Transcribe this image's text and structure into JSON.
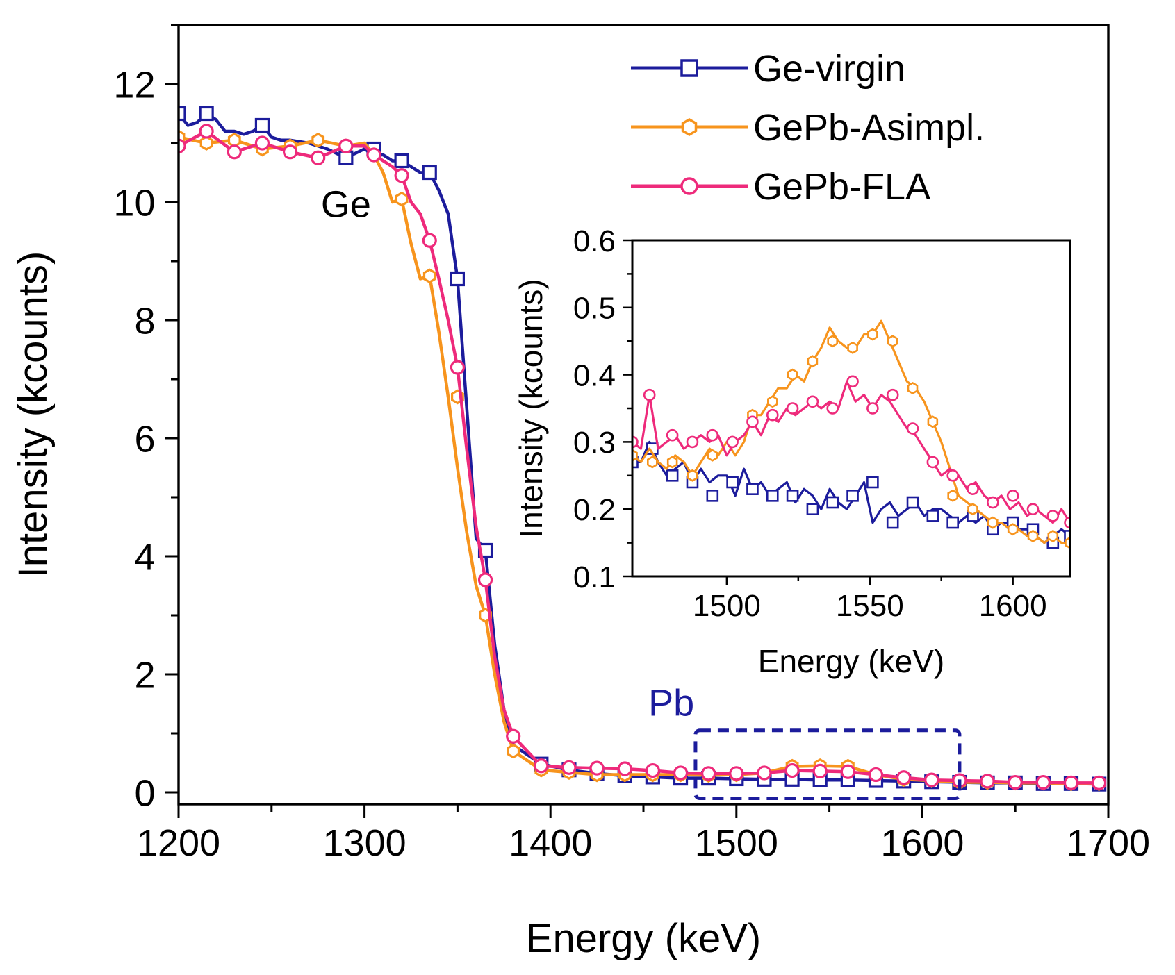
{
  "chart_data": [
    {
      "id": "main",
      "type": "line",
      "title": "",
      "xlabel": "Energy (keV)",
      "ylabel": "Intensity (kcounts)",
      "xlim": [
        1200,
        1700
      ],
      "ylim": [
        -0.2,
        13.0
      ],
      "xticks": [
        1200,
        1300,
        1400,
        1500,
        1600,
        1700
      ],
      "yticks": [
        0,
        2,
        4,
        6,
        8,
        10,
        12
      ],
      "legend_position": "top-right",
      "annotations": [
        {
          "text": "Ge",
          "x": 1290,
          "y": 9.75,
          "color": "#000000"
        },
        {
          "text": "Pb",
          "x": 1465,
          "y": 1.3,
          "color": "#1c1c9c"
        }
      ],
      "highlight_box": {
        "x": [
          1478,
          1620
        ],
        "y": [
          -0.1,
          1.05
        ],
        "color": "#1c1c9c"
      },
      "series": [
        {
          "name": "Ge-virgin",
          "color": "#1c1c9c",
          "marker": "square",
          "x": [
            1200,
            1205,
            1210,
            1215,
            1220,
            1225,
            1230,
            1235,
            1240,
            1245,
            1250,
            1255,
            1260,
            1270,
            1280,
            1290,
            1300,
            1305,
            1310,
            1315,
            1320,
            1325,
            1330,
            1335,
            1340,
            1345,
            1350,
            1355,
            1360,
            1365,
            1370,
            1375,
            1380,
            1395,
            1410,
            1425,
            1440,
            1455,
            1470,
            1485,
            1500,
            1515,
            1530,
            1545,
            1560,
            1575,
            1590,
            1605,
            1620,
            1635,
            1650,
            1665,
            1680,
            1695
          ],
          "y": [
            11.5,
            11.3,
            11.35,
            11.5,
            11.4,
            11.2,
            11.2,
            11.15,
            11.2,
            11.3,
            11.1,
            11.05,
            11.05,
            11.0,
            10.9,
            10.75,
            10.9,
            10.8,
            10.8,
            10.7,
            10.7,
            10.6,
            10.5,
            10.5,
            10.2,
            9.8,
            8.7,
            6.5,
            4.3,
            4.1,
            2.5,
            1.4,
            0.8,
            0.48,
            0.38,
            0.32,
            0.28,
            0.26,
            0.24,
            0.24,
            0.23,
            0.22,
            0.22,
            0.21,
            0.21,
            0.2,
            0.19,
            0.18,
            0.17,
            0.16,
            0.16,
            0.15,
            0.15,
            0.14
          ],
          "marker_x": [
            1200,
            1215,
            1245,
            1290,
            1305,
            1320,
            1335,
            1350,
            1365,
            1395,
            1410,
            1425,
            1440,
            1455,
            1470,
            1485,
            1500,
            1515,
            1530,
            1545,
            1560,
            1575,
            1590,
            1605,
            1620,
            1635,
            1650,
            1665,
            1680,
            1695
          ],
          "marker_y": [
            11.5,
            11.5,
            11.3,
            10.75,
            10.9,
            10.7,
            10.5,
            8.7,
            4.1,
            0.48,
            0.38,
            0.32,
            0.28,
            0.26,
            0.24,
            0.24,
            0.23,
            0.22,
            0.22,
            0.21,
            0.21,
            0.2,
            0.19,
            0.18,
            0.17,
            0.16,
            0.16,
            0.15,
            0.15,
            0.14
          ]
        },
        {
          "name": "GePb-Asimpl.",
          "color": "#f7941d",
          "marker": "hexagon",
          "x": [
            1200,
            1215,
            1230,
            1245,
            1260,
            1275,
            1290,
            1300,
            1305,
            1310,
            1315,
            1320,
            1325,
            1330,
            1335,
            1340,
            1345,
            1350,
            1355,
            1360,
            1365,
            1370,
            1375,
            1380,
            1395,
            1410,
            1425,
            1440,
            1455,
            1470,
            1485,
            1500,
            1515,
            1530,
            1545,
            1560,
            1575,
            1590,
            1605,
            1620,
            1635,
            1650,
            1665,
            1680,
            1695
          ],
          "y": [
            11.1,
            11.0,
            11.05,
            10.9,
            10.95,
            11.05,
            10.95,
            11.0,
            10.8,
            10.5,
            10.0,
            10.05,
            9.3,
            8.7,
            8.75,
            7.8,
            6.7,
            5.5,
            4.4,
            3.5,
            3.0,
            2.0,
            1.2,
            0.7,
            0.38,
            0.34,
            0.3,
            0.3,
            0.3,
            0.3,
            0.29,
            0.3,
            0.33,
            0.44,
            0.45,
            0.44,
            0.3,
            0.22,
            0.2,
            0.17,
            0.17,
            0.16,
            0.16,
            0.15,
            0.15
          ],
          "marker_x": [
            1200,
            1215,
            1230,
            1245,
            1260,
            1275,
            1290,
            1305,
            1320,
            1335,
            1350,
            1365,
            1380,
            1395,
            1410,
            1425,
            1440,
            1455,
            1470,
            1485,
            1500,
            1515,
            1530,
            1545,
            1560,
            1575,
            1590,
            1605,
            1620,
            1635,
            1650,
            1665,
            1680,
            1695
          ],
          "marker_y": [
            11.1,
            11.0,
            11.05,
            10.9,
            10.95,
            11.05,
            10.95,
            10.8,
            10.05,
            8.75,
            6.7,
            3.0,
            0.7,
            0.38,
            0.34,
            0.3,
            0.3,
            0.3,
            0.3,
            0.29,
            0.3,
            0.33,
            0.44,
            0.45,
            0.44,
            0.3,
            0.22,
            0.2,
            0.17,
            0.17,
            0.16,
            0.16,
            0.15,
            0.15
          ]
        },
        {
          "name": "GePb-FLA",
          "color": "#ee2a7b",
          "marker": "circle",
          "x": [
            1200,
            1215,
            1230,
            1245,
            1260,
            1275,
            1290,
            1300,
            1305,
            1310,
            1315,
            1320,
            1325,
            1330,
            1335,
            1340,
            1345,
            1350,
            1355,
            1360,
            1365,
            1370,
            1375,
            1380,
            1395,
            1410,
            1425,
            1440,
            1455,
            1470,
            1485,
            1500,
            1515,
            1530,
            1545,
            1560,
            1575,
            1590,
            1605,
            1620,
            1635,
            1650,
            1665,
            1680,
            1695
          ],
          "y": [
            10.95,
            11.2,
            10.85,
            11.0,
            10.85,
            10.75,
            10.95,
            10.95,
            10.8,
            10.7,
            10.6,
            10.45,
            10.0,
            9.8,
            9.35,
            8.7,
            8.0,
            7.2,
            5.8,
            4.5,
            3.6,
            2.3,
            1.4,
            0.95,
            0.45,
            0.42,
            0.41,
            0.4,
            0.37,
            0.33,
            0.32,
            0.32,
            0.33,
            0.37,
            0.36,
            0.35,
            0.3,
            0.25,
            0.21,
            0.2,
            0.19,
            0.17,
            0.17,
            0.16,
            0.16
          ],
          "marker_x": [
            1200,
            1215,
            1230,
            1245,
            1260,
            1275,
            1290,
            1305,
            1320,
            1335,
            1350,
            1365,
            1380,
            1395,
            1410,
            1425,
            1440,
            1455,
            1470,
            1485,
            1500,
            1515,
            1530,
            1545,
            1560,
            1575,
            1590,
            1605,
            1620,
            1635,
            1650,
            1665,
            1680,
            1695
          ],
          "marker_y": [
            10.95,
            11.2,
            10.85,
            11.0,
            10.85,
            10.75,
            10.95,
            10.8,
            10.45,
            9.35,
            7.2,
            3.6,
            0.95,
            0.45,
            0.42,
            0.41,
            0.4,
            0.37,
            0.33,
            0.32,
            0.32,
            0.33,
            0.37,
            0.36,
            0.35,
            0.3,
            0.25,
            0.21,
            0.2,
            0.19,
            0.17,
            0.17,
            0.16,
            0.16
          ]
        }
      ]
    },
    {
      "id": "inset",
      "type": "line",
      "title": "",
      "xlabel": "Energy (keV)",
      "ylabel": "Intensity (kcounts)",
      "xlim": [
        1467,
        1620
      ],
      "ylim": [
        0.1,
        0.6
      ],
      "xticks": [
        1500,
        1550,
        1600
      ],
      "yticks": [
        0.1,
        0.2,
        0.3,
        0.4,
        0.5,
        0.6
      ],
      "ytick_labels": [
        "0.1",
        "0.2",
        "0.3",
        "0.4",
        "0.5",
        "0.6"
      ],
      "series": [
        {
          "name": "Ge-virgin",
          "color": "#1c1c9c",
          "marker": "square",
          "x": [
            1467,
            1470,
            1473,
            1476,
            1479,
            1482,
            1485,
            1488,
            1491,
            1494,
            1497,
            1500,
            1503,
            1506,
            1509,
            1512,
            1515,
            1518,
            1521,
            1524,
            1527,
            1530,
            1533,
            1536,
            1539,
            1542,
            1545,
            1548,
            1551,
            1554,
            1557,
            1560,
            1563,
            1566,
            1569,
            1572,
            1575,
            1578,
            1581,
            1584,
            1587,
            1590,
            1593,
            1596,
            1599,
            1602,
            1605,
            1608,
            1611,
            1614,
            1617,
            1620
          ],
          "y": [
            0.27,
            0.27,
            0.3,
            0.27,
            0.25,
            0.26,
            0.27,
            0.24,
            0.26,
            0.24,
            0.25,
            0.25,
            0.22,
            0.26,
            0.23,
            0.24,
            0.22,
            0.23,
            0.24,
            0.21,
            0.23,
            0.22,
            0.2,
            0.23,
            0.21,
            0.2,
            0.22,
            0.24,
            0.18,
            0.2,
            0.21,
            0.19,
            0.2,
            0.21,
            0.19,
            0.2,
            0.2,
            0.19,
            0.18,
            0.19,
            0.18,
            0.19,
            0.17,
            0.18,
            0.18,
            0.17,
            0.17,
            0.16,
            0.15,
            0.16,
            0.17,
            0.16
          ],
          "marker_x": [
            1467,
            1474,
            1481,
            1488,
            1495,
            1502,
            1509,
            1516,
            1523,
            1530,
            1537,
            1544,
            1551,
            1558,
            1565,
            1572,
            1579,
            1586,
            1593,
            1600,
            1607,
            1614,
            1620
          ],
          "marker_y": [
            0.27,
            0.29,
            0.25,
            0.24,
            0.22,
            0.24,
            0.23,
            0.22,
            0.22,
            0.2,
            0.21,
            0.22,
            0.24,
            0.18,
            0.21,
            0.19,
            0.18,
            0.19,
            0.17,
            0.18,
            0.17,
            0.15,
            0.16
          ]
        },
        {
          "name": "GePb-Asimpl.",
          "color": "#f7941d",
          "marker": "hexagon",
          "x": [
            1467,
            1470,
            1473,
            1476,
            1479,
            1482,
            1485,
            1488,
            1491,
            1494,
            1497,
            1500,
            1503,
            1506,
            1509,
            1512,
            1515,
            1518,
            1521,
            1524,
            1527,
            1530,
            1533,
            1536,
            1539,
            1542,
            1545,
            1548,
            1551,
            1554,
            1557,
            1560,
            1563,
            1566,
            1569,
            1572,
            1575,
            1578,
            1581,
            1584,
            1587,
            1590,
            1593,
            1596,
            1599,
            1602,
            1605,
            1608,
            1611,
            1614,
            1617,
            1620
          ],
          "y": [
            0.28,
            0.27,
            0.29,
            0.27,
            0.26,
            0.28,
            0.27,
            0.25,
            0.27,
            0.29,
            0.28,
            0.3,
            0.28,
            0.3,
            0.34,
            0.34,
            0.36,
            0.38,
            0.38,
            0.4,
            0.39,
            0.42,
            0.44,
            0.47,
            0.45,
            0.44,
            0.44,
            0.46,
            0.46,
            0.48,
            0.45,
            0.42,
            0.39,
            0.38,
            0.36,
            0.33,
            0.3,
            0.26,
            0.22,
            0.21,
            0.2,
            0.19,
            0.18,
            0.18,
            0.17,
            0.17,
            0.16,
            0.16,
            0.15,
            0.16,
            0.15,
            0.15
          ],
          "marker_x": [
            1467,
            1474,
            1481,
            1488,
            1495,
            1502,
            1509,
            1516,
            1523,
            1530,
            1537,
            1544,
            1551,
            1558,
            1565,
            1572,
            1579,
            1586,
            1593,
            1600,
            1607,
            1614,
            1620
          ],
          "marker_y": [
            0.28,
            0.27,
            0.27,
            0.25,
            0.28,
            0.3,
            0.34,
            0.36,
            0.4,
            0.42,
            0.45,
            0.44,
            0.46,
            0.45,
            0.38,
            0.33,
            0.22,
            0.2,
            0.18,
            0.17,
            0.16,
            0.16,
            0.15
          ]
        },
        {
          "name": "GePb-FLA",
          "color": "#ee2a7b",
          "marker": "circle",
          "x": [
            1467,
            1470,
            1473,
            1476,
            1479,
            1482,
            1485,
            1488,
            1491,
            1494,
            1497,
            1500,
            1503,
            1506,
            1509,
            1512,
            1515,
            1518,
            1521,
            1524,
            1527,
            1530,
            1533,
            1536,
            1539,
            1542,
            1545,
            1548,
            1551,
            1554,
            1557,
            1560,
            1563,
            1566,
            1569,
            1572,
            1575,
            1578,
            1581,
            1584,
            1587,
            1590,
            1593,
            1596,
            1599,
            1602,
            1605,
            1608,
            1611,
            1614,
            1617,
            1620
          ],
          "y": [
            0.3,
            0.29,
            0.37,
            0.29,
            0.3,
            0.31,
            0.29,
            0.3,
            0.31,
            0.3,
            0.31,
            0.28,
            0.3,
            0.31,
            0.33,
            0.31,
            0.34,
            0.33,
            0.35,
            0.34,
            0.35,
            0.36,
            0.35,
            0.36,
            0.35,
            0.39,
            0.36,
            0.37,
            0.35,
            0.37,
            0.36,
            0.34,
            0.32,
            0.31,
            0.29,
            0.27,
            0.25,
            0.26,
            0.25,
            0.23,
            0.24,
            0.22,
            0.21,
            0.22,
            0.2,
            0.21,
            0.19,
            0.2,
            0.19,
            0.18,
            0.2,
            0.18
          ],
          "marker_x": [
            1467,
            1473,
            1481,
            1488,
            1495,
            1502,
            1509,
            1516,
            1523,
            1530,
            1537,
            1544,
            1551,
            1558,
            1565,
            1572,
            1579,
            1586,
            1593,
            1600,
            1607,
            1614,
            1620
          ],
          "marker_y": [
            0.3,
            0.37,
            0.31,
            0.3,
            0.31,
            0.3,
            0.33,
            0.34,
            0.35,
            0.36,
            0.35,
            0.39,
            0.35,
            0.37,
            0.32,
            0.27,
            0.25,
            0.23,
            0.21,
            0.22,
            0.2,
            0.19,
            0.18
          ]
        }
      ]
    }
  ]
}
